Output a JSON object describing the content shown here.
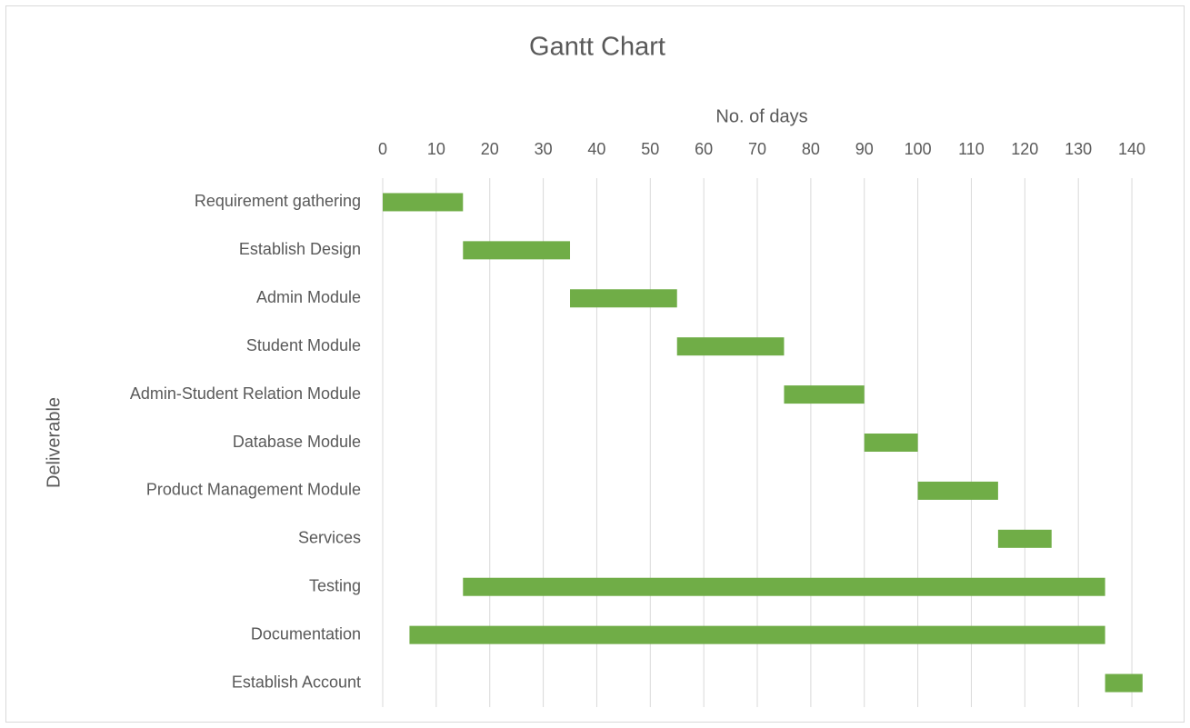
{
  "chart_data": {
    "type": "gantt",
    "title": "Gantt Chart",
    "x_label": "No. of days",
    "y_label": "Deliverable",
    "categories": [
      "Requirement gathering",
      "Establish Design",
      "Admin Module",
      "Student Module",
      "Admin-Student Relation Module",
      "Database Module",
      "Product Management Module",
      "Services",
      "Testing",
      "Documentation",
      "Establish Account"
    ],
    "starts": [
      0,
      15,
      35,
      55,
      75,
      90,
      100,
      115,
      15,
      5,
      135
    ],
    "durations": [
      15,
      20,
      20,
      20,
      15,
      10,
      15,
      10,
      120,
      130,
      7
    ],
    "color": "#70ad47",
    "xlim": [
      0,
      142
    ],
    "xticks": [
      0,
      10,
      20,
      30,
      40,
      50,
      60,
      70,
      80,
      90,
      100,
      110,
      120,
      130,
      140
    ],
    "grid": true
  }
}
